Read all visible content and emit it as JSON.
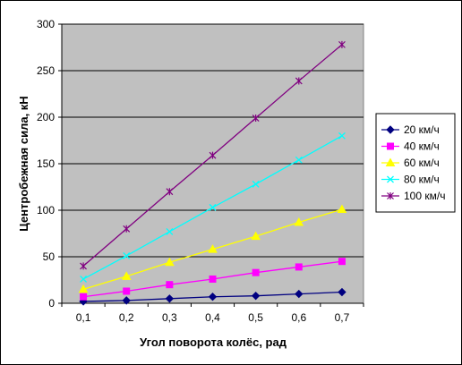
{
  "chart_data": {
    "type": "line",
    "xlabel": "Угол поворота колёс, рад",
    "ylabel": "Центробежная сила, кН",
    "x": [
      0.1,
      0.2,
      0.3,
      0.4,
      0.5,
      0.6,
      0.7
    ],
    "x_tick_labels": [
      "0,1",
      "0,2",
      "0,3",
      "0,4",
      "0,5",
      "0,6",
      "0,7"
    ],
    "ylim": [
      0,
      300
    ],
    "y_ticks": [
      0,
      50,
      100,
      150,
      200,
      250,
      300
    ],
    "grid": "horizontal",
    "plot_background": "#c0c0c0",
    "legend_position": "right",
    "series": [
      {
        "name": "20 км/ч",
        "color": "#000080",
        "marker": "diamond",
        "values": [
          2,
          3,
          5,
          7,
          8,
          10,
          12
        ]
      },
      {
        "name": "40 км/ч",
        "color": "#ff00ff",
        "marker": "square",
        "values": [
          7,
          13,
          20,
          26,
          33,
          39,
          45
        ]
      },
      {
        "name": "60 км/ч",
        "color": "#ffff00",
        "marker": "triangle",
        "values": [
          15,
          29,
          44,
          58,
          72,
          87,
          101
        ]
      },
      {
        "name": "80 км/ч",
        "color": "#00ffff",
        "marker": "x",
        "values": [
          26,
          51,
          77,
          103,
          128,
          154,
          180
        ]
      },
      {
        "name": "100 км/ч",
        "color": "#800080",
        "marker": "star",
        "values": [
          40,
          80,
          120,
          159,
          199,
          239,
          278
        ]
      }
    ]
  }
}
